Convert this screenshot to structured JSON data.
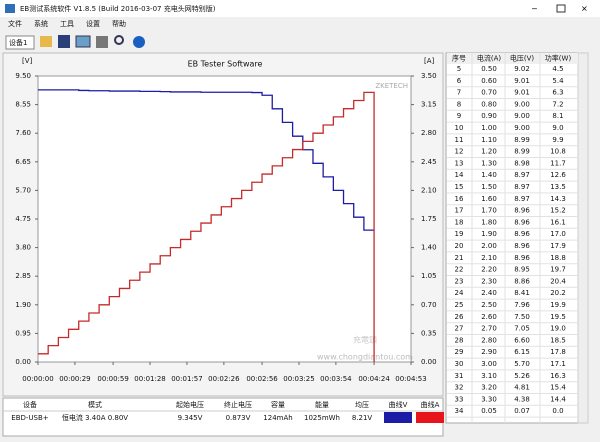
{
  "window": {
    "title": "EB测试系统软件 V1.8.5 (Build 2016-03-07 充电头网特别版)",
    "menu": [
      "文件",
      "系统",
      "工具",
      "设置",
      "帮助"
    ],
    "device": "设备1"
  },
  "chart": {
    "type": "line",
    "title": "EB Tester Software",
    "y_label": "[V]",
    "y2_label": "[A]",
    "watermark": "ZKETECH",
    "logo": "充電頭",
    "logo_url": "www.chongdiantou.com",
    "step": true,
    "grid": false,
    "x": [
      0,
      8,
      16,
      24,
      32,
      40,
      48,
      56,
      64,
      72,
      80,
      88,
      96,
      104,
      112,
      120,
      128,
      136,
      144,
      152,
      160,
      168,
      176,
      184,
      192,
      200,
      208,
      216,
      224,
      232,
      240,
      248,
      256,
      264
    ],
    "xlim": [
      0,
      293
    ],
    "xticks": [
      {
        "value": 0,
        "label": "00:00:00"
      },
      {
        "value": 29,
        "label": "00:00:29"
      },
      {
        "value": 59,
        "label": "00:00:59"
      },
      {
        "value": 88,
        "label": "00:01:28"
      },
      {
        "value": 117,
        "label": "00:01:57"
      },
      {
        "value": 146,
        "label": "00:02:26"
      },
      {
        "value": 176,
        "label": "00:02:56"
      },
      {
        "value": 205,
        "label": "00:03:25"
      },
      {
        "value": 234,
        "label": "00:03:54"
      },
      {
        "value": 264,
        "label": "00:04:24"
      },
      {
        "value": 293,
        "label": "00:04:53"
      }
    ],
    "ylim": [
      0,
      9.5
    ],
    "yticks": [
      {
        "value": 0,
        "label": "0.00"
      },
      0.95,
      {
        "value": 1.9,
        "label": "1.90"
      },
      2.85,
      {
        "value": 3.8,
        "label": "3.80"
      },
      4.75,
      {
        "value": 5.7,
        "label": "5.70"
      },
      6.65,
      {
        "value": 7.6,
        "label": "7.60"
      },
      8.55,
      {
        "value": 9.5,
        "label": "9.50"
      }
    ],
    "y2lim": [
      0,
      3.5
    ],
    "y2ticks": [
      {
        "value": 0,
        "label": "0.00"
      },
      0.35,
      {
        "value": 0.7,
        "label": "0.70"
      },
      1.05,
      {
        "value": 1.4,
        "label": "1.40"
      },
      1.75,
      {
        "value": 2.1,
        "label": "2.10"
      },
      2.45,
      {
        "value": 2.8,
        "label": "2.80"
      },
      3.15,
      {
        "value": 3.5,
        "label": "3.50"
      }
    ],
    "series": [
      {
        "color": "#1c1ca6",
        "values": [
          9.04,
          9.04,
          9.04,
          9.04,
          9.02,
          9.01,
          9.01,
          9.0,
          9.0,
          9.0,
          8.99,
          8.99,
          8.98,
          8.97,
          8.97,
          8.97,
          8.96,
          8.96,
          8.96,
          8.96,
          8.96,
          8.95,
          8.86,
          8.41,
          7.96,
          7.5,
          7.05,
          6.6,
          6.15,
          5.7,
          5.26,
          4.81,
          4.38,
          null
        ]
      },
      {
        "color": "#c62a2a",
        "axis": "y2",
        "values": [
          0.1,
          0.2,
          0.3,
          0.4,
          0.5,
          0.6,
          0.7,
          0.8,
          0.9,
          1.0,
          1.1,
          1.2,
          1.3,
          1.4,
          1.5,
          1.6,
          1.7,
          1.8,
          1.9,
          2.0,
          2.1,
          2.2,
          2.3,
          2.4,
          2.5,
          2.6,
          2.7,
          2.8,
          2.9,
          3.0,
          3.1,
          3.2,
          3.3,
          0
        ]
      }
    ]
  },
  "table": {
    "headers": [
      "序号",
      "电流(A)",
      "电压(V)",
      "功率(W)"
    ],
    "rows": [
      [
        "5",
        "0.50",
        "9.02",
        "4.5"
      ],
      [
        "6",
        "0.60",
        "9.01",
        "5.4"
      ],
      [
        "7",
        "0.70",
        "9.01",
        "6.3"
      ],
      [
        "8",
        "0.80",
        "9.00",
        "7.2"
      ],
      [
        "9",
        "0.90",
        "9.00",
        "8.1"
      ],
      [
        "10",
        "1.00",
        "9.00",
        "9.0"
      ],
      [
        "11",
        "1.10",
        "8.99",
        "9.9"
      ],
      [
        "12",
        "1.20",
        "8.99",
        "10.8"
      ],
      [
        "13",
        "1.30",
        "8.98",
        "11.7"
      ],
      [
        "14",
        "1.40",
        "8.97",
        "12.6"
      ],
      [
        "15",
        "1.50",
        "8.97",
        "13.5"
      ],
      [
        "16",
        "1.60",
        "8.97",
        "14.3"
      ],
      [
        "17",
        "1.70",
        "8.96",
        "15.2"
      ],
      [
        "18",
        "1.80",
        "8.96",
        "16.1"
      ],
      [
        "19",
        "1.90",
        "8.96",
        "17.0"
      ],
      [
        "20",
        "2.00",
        "8.96",
        "17.9"
      ],
      [
        "21",
        "2.10",
        "8.96",
        "18.8"
      ],
      [
        "22",
        "2.20",
        "8.95",
        "19.7"
      ],
      [
        "23",
        "2.30",
        "8.86",
        "20.4"
      ],
      [
        "24",
        "2.40",
        "8.41",
        "20.2"
      ],
      [
        "25",
        "2.50",
        "7.96",
        "19.9"
      ],
      [
        "26",
        "2.60",
        "7.50",
        "19.5"
      ],
      [
        "27",
        "2.70",
        "7.05",
        "19.0"
      ],
      [
        "28",
        "2.80",
        "6.60",
        "18.5"
      ],
      [
        "29",
        "2.90",
        "6.15",
        "17.8"
      ],
      [
        "30",
        "3.00",
        "5.70",
        "17.1"
      ],
      [
        "31",
        "3.10",
        "5.26",
        "16.3"
      ],
      [
        "32",
        "3.20",
        "4.81",
        "15.4"
      ],
      [
        "33",
        "3.30",
        "4.38",
        "14.4"
      ],
      [
        "34",
        "0.05",
        "0.07",
        "0.0"
      ]
    ]
  },
  "status": {
    "headers": [
      "设备",
      "模式",
      "起始电压",
      "终止电压",
      "容量",
      "能量",
      "均压",
      "曲线V",
      "曲线A"
    ],
    "row": [
      "EBD-USB+",
      "恒电流 3.40A 0.80V",
      "9.345V",
      "0.873V",
      "124mAh",
      "1025mWh",
      "8.21V"
    ],
    "swatches": [
      "#1c1ca6",
      "#e8141c"
    ]
  }
}
